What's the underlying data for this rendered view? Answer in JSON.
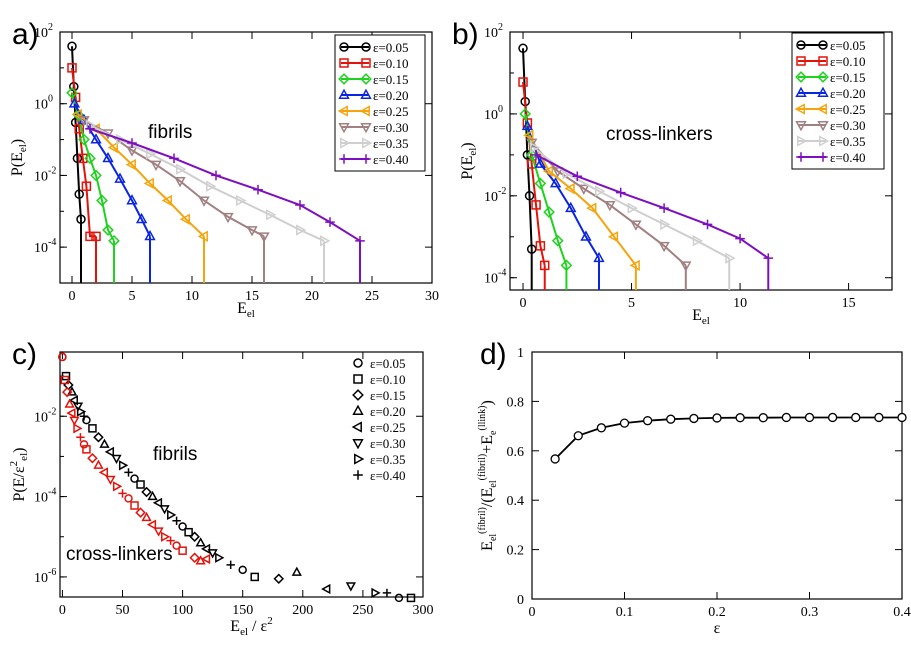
{
  "figure": {
    "panel_labels": [
      "a)",
      "b)",
      "c)",
      "d)"
    ]
  },
  "chart_data": [
    {
      "panel": "a)",
      "type": "line",
      "xlabel": "E",
      "xlabel_sub": "el",
      "ylabel": "P(E",
      "ylabel_sub": "el",
      "ylabel_close": ")",
      "xlim": [
        -1,
        30
      ],
      "ylim_log10": [
        -5,
        2
      ],
      "y_scale": "log",
      "xticks": [
        0,
        5,
        10,
        15,
        20,
        25,
        30
      ],
      "yticks": [
        {
          "exp": 2,
          "label": "10"
        },
        {
          "exp": 0,
          "label": "10"
        },
        {
          "exp": -2,
          "label": "10"
        },
        {
          "exp": -4,
          "label": "10"
        }
      ],
      "ytick_exponents": [
        "2",
        "0",
        "-2",
        "-4"
      ],
      "annotation": {
        "text": "fibrils",
        "color": "#000000"
      },
      "legend_position": "top-right",
      "series": [
        {
          "name": "ε=0.05",
          "color": "#000000",
          "marker": "circle",
          "x": [
            0,
            0.15,
            0.3,
            0.45,
            0.6,
            0.75
          ],
          "y": [
            40,
            3,
            0.3,
            0.03,
            0.003,
            0.0006
          ]
        },
        {
          "name": "ε=0.10",
          "color": "#e3120b",
          "marker": "square",
          "x": [
            0,
            0.3,
            0.6,
            0.9,
            1.2,
            1.5,
            2.0
          ],
          "y": [
            10,
            1.5,
            0.2,
            0.03,
            0.005,
            0.0002,
            0.0002
          ]
        },
        {
          "name": "ε=0.15",
          "color": "#1fd21f",
          "marker": "diamond",
          "x": [
            0,
            0.5,
            1.0,
            1.5,
            2.0,
            2.5,
            3.0,
            3.5
          ],
          "y": [
            2,
            0.5,
            0.1,
            0.03,
            0.01,
            0.002,
            0.0003,
            0.00015
          ]
        },
        {
          "name": "ε=0.20",
          "color": "#0a25e0",
          "marker": "triangle-up",
          "x": [
            0.2,
            1,
            2,
            3,
            4,
            5,
            5.8,
            6.5
          ],
          "y": [
            1,
            0.35,
            0.1,
            0.03,
            0.008,
            0.002,
            0.0006,
            0.0002
          ]
        },
        {
          "name": "ε=0.25",
          "color": "#f5a40c",
          "marker": "triangle-left",
          "x": [
            0.5,
            2,
            3.5,
            5,
            6.5,
            8,
            9.5,
            11
          ],
          "y": [
            0.5,
            0.2,
            0.06,
            0.02,
            0.006,
            0.002,
            0.0006,
            0.0002
          ]
        },
        {
          "name": "ε=0.30",
          "color": "#a08080",
          "marker": "triangle-down",
          "x": [
            1,
            3,
            5,
            7,
            9,
            11,
            13,
            15,
            16
          ],
          "y": [
            0.35,
            0.15,
            0.05,
            0.02,
            0.007,
            0.002,
            0.0007,
            0.0003,
            0.0002
          ]
        },
        {
          "name": "ε=0.35",
          "color": "#cfcfcf",
          "marker": "triangle-right",
          "x": [
            1.5,
            4,
            6.5,
            9,
            11.5,
            14,
            16.5,
            19,
            21
          ],
          "y": [
            0.25,
            0.1,
            0.04,
            0.015,
            0.005,
            0.002,
            0.0008,
            0.0003,
            0.00015
          ]
        },
        {
          "name": "ε=0.40",
          "color": "#7d0fbe",
          "marker": "plus",
          "x": [
            1.5,
            5,
            8.5,
            12,
            15.5,
            19,
            21.5,
            24
          ],
          "y": [
            0.2,
            0.08,
            0.03,
            0.01,
            0.004,
            0.0015,
            0.0005,
            0.00015
          ]
        }
      ]
    },
    {
      "panel": "b)",
      "type": "line",
      "xlabel": "E",
      "xlabel_sub": "el",
      "ylabel": "P(E",
      "ylabel_sub": "el",
      "ylabel_close": ")",
      "xlim": [
        -0.6,
        17
      ],
      "ylim_log10": [
        -4.3,
        2
      ],
      "y_scale": "log",
      "xticks": [
        0,
        5,
        10,
        15
      ],
      "yticks": [
        {
          "exp": 2,
          "label": "10"
        },
        {
          "exp": 0,
          "label": "10"
        },
        {
          "exp": -2,
          "label": "10"
        },
        {
          "exp": -4,
          "label": "10"
        }
      ],
      "ytick_exponents": [
        "2",
        "0",
        "-2",
        "-4"
      ],
      "annotation": {
        "text": "cross-linkers",
        "color": "#c0392b"
      },
      "legend_position": "top-right",
      "series": [
        {
          "name": "ε=0.05",
          "color": "#000000",
          "marker": "circle",
          "x": [
            0,
            0.1,
            0.2,
            0.3,
            0.4
          ],
          "y": [
            40,
            2,
            0.1,
            0.01,
            0.0005
          ]
        },
        {
          "name": "ε=0.10",
          "color": "#e3120b",
          "marker": "square",
          "x": [
            0,
            0.2,
            0.4,
            0.6,
            0.8,
            1.0
          ],
          "y": [
            6,
            0.6,
            0.06,
            0.006,
            0.0006,
            0.0002
          ]
        },
        {
          "name": "ε=0.15",
          "color": "#1fd21f",
          "marker": "diamond",
          "x": [
            0.1,
            0.4,
            0.8,
            1.2,
            1.6,
            2.0
          ],
          "y": [
            1,
            0.1,
            0.02,
            0.004,
            0.0008,
            0.0002
          ]
        },
        {
          "name": "ε=0.20",
          "color": "#0a25e0",
          "marker": "triangle-up",
          "x": [
            0.2,
            0.8,
            1.5,
            2.2,
            2.9,
            3.5
          ],
          "y": [
            0.5,
            0.06,
            0.02,
            0.005,
            0.001,
            0.0003
          ]
        },
        {
          "name": "ε=0.25",
          "color": "#f5a40c",
          "marker": "triangle-left",
          "x": [
            0.3,
            1.2,
            2.2,
            3.2,
            4.2,
            5.2
          ],
          "y": [
            0.3,
            0.04,
            0.015,
            0.005,
            0.001,
            0.0002
          ]
        },
        {
          "name": "ε=0.30",
          "color": "#a08080",
          "marker": "triangle-down",
          "x": [
            0.4,
            1.6,
            2.8,
            4.0,
            5.2,
            6.5,
            7.5
          ],
          "y": [
            0.2,
            0.04,
            0.015,
            0.006,
            0.002,
            0.0006,
            0.0002
          ]
        },
        {
          "name": "ε=0.35",
          "color": "#cfcfcf",
          "marker": "triangle-right",
          "x": [
            0.5,
            2,
            3.5,
            5,
            6.5,
            8,
            9.5
          ],
          "y": [
            0.15,
            0.035,
            0.013,
            0.005,
            0.002,
            0.0008,
            0.0003
          ]
        },
        {
          "name": "ε=0.40",
          "color": "#7d0fbe",
          "marker": "plus",
          "x": [
            0.6,
            2.5,
            4.5,
            6.5,
            8.5,
            10,
            11.3
          ],
          "y": [
            0.1,
            0.03,
            0.012,
            0.005,
            0.002,
            0.0009,
            0.0003
          ]
        }
      ]
    },
    {
      "panel": "c)",
      "type": "scatter",
      "xlabel": "E",
      "xlabel_sub": "el",
      "xlabel_rest": " / ε",
      "xlabel_sup": "2",
      "ylabel": "P(E/ε",
      "ylabel_sup": "2",
      "ylabel_sub": "el",
      "ylabel_close": ")",
      "xlim": [
        -2,
        300
      ],
      "ylim_log10": [
        -6.5,
        -0.4
      ],
      "y_scale": "log",
      "xticks": [
        0,
        50,
        100,
        150,
        200,
        250,
        300
      ],
      "yticks": [
        {
          "exp": -2,
          "label": "10"
        },
        {
          "exp": -4,
          "label": "10"
        },
        {
          "exp": -6,
          "label": "10"
        }
      ],
      "ytick_exponents": [
        "-2",
        "-4",
        "-6"
      ],
      "annotations": [
        {
          "text": "fibrils",
          "color": "#000000"
        },
        {
          "text": "cross-linkers",
          "color": "#e3120b"
        }
      ],
      "legend_position": "top-right",
      "legend": [
        {
          "name": "ε=0.05",
          "marker": "circle"
        },
        {
          "name": "ε=0.10",
          "marker": "square"
        },
        {
          "name": "ε=0.15",
          "marker": "diamond"
        },
        {
          "name": "ε=0.20",
          "marker": "triangle-up"
        },
        {
          "name": "ε=0.25",
          "marker": "triangle-left"
        },
        {
          "name": "ε=0.30",
          "marker": "triangle-down"
        },
        {
          "name": "ε=0.35",
          "marker": "triangle-right"
        },
        {
          "name": "ε=0.40",
          "marker": "plus"
        }
      ],
      "series": [
        {
          "name": "fibrils",
          "color": "#000000",
          "x": [
            0,
            3,
            5,
            8,
            10,
            13,
            15,
            18,
            20,
            25,
            30,
            35,
            40,
            45,
            50,
            55,
            60,
            65,
            70,
            75,
            80,
            85,
            90,
            95,
            100,
            105,
            110,
            115,
            120,
            125,
            130,
            140,
            150,
            160,
            180,
            195,
            220,
            240,
            260,
            270,
            280,
            290
          ],
          "y": [
            0.3,
            0.1,
            0.06,
            0.04,
            0.025,
            0.018,
            0.013,
            0.01,
            0.008,
            0.005,
            0.003,
            0.002,
            0.0013,
            0.0009,
            0.0006,
            0.0004,
            0.00028,
            0.0002,
            0.00013,
            0.0001,
            7e-05,
            5e-05,
            3.5e-05,
            2.5e-05,
            1.8e-05,
            1.3e-05,
            1e-05,
            7e-06,
            5e-06,
            4e-06,
            3e-06,
            2e-06,
            1.5e-06,
            1e-06,
            9e-07,
            1.3e-06,
            5e-07,
            6e-07,
            4e-07,
            4e-07,
            3e-07,
            3e-07
          ]
        },
        {
          "name": "cross-linkers",
          "color": "#e3120b",
          "x": [
            0,
            2,
            4,
            6,
            8,
            10,
            12,
            15,
            18,
            20,
            25,
            30,
            35,
            40,
            45,
            50,
            55,
            60,
            65,
            70,
            75,
            80,
            85,
            90,
            95,
            100,
            110,
            115,
            120
          ],
          "y": [
            0.3,
            0.08,
            0.04,
            0.02,
            0.012,
            0.008,
            0.005,
            0.003,
            0.002,
            0.0015,
            0.0009,
            0.0006,
            0.0004,
            0.00027,
            0.00018,
            0.00012,
            9e-05,
            6e-05,
            4e-05,
            3e-05,
            2e-05,
            1.4e-05,
            1e-05,
            8e-06,
            6e-06,
            4.5e-06,
            3e-06,
            2.5e-06,
            2.8e-06
          ]
        }
      ]
    },
    {
      "panel": "d)",
      "type": "line",
      "xlabel": "ε",
      "ylabel_parts": [
        "E",
        "el",
        "(fibril)",
        "/(E",
        "el",
        "(fibril)",
        "+E",
        "e",
        "(llink)",
        ")"
      ],
      "xlim": [
        0,
        0.4
      ],
      "ylim": [
        0,
        1
      ],
      "xticks": [
        0,
        0.1,
        0.2,
        0.3,
        0.4
      ],
      "yticks": [
        0,
        0.2,
        0.4,
        0.6,
        0.8,
        1
      ],
      "series": [
        {
          "name": "",
          "color": "#000000",
          "marker": "circle",
          "x": [
            0.025,
            0.05,
            0.075,
            0.1,
            0.125,
            0.15,
            0.175,
            0.2,
            0.225,
            0.25,
            0.275,
            0.3,
            0.325,
            0.35,
            0.375,
            0.4
          ],
          "y": [
            0.567,
            0.661,
            0.693,
            0.712,
            0.722,
            0.728,
            0.731,
            0.733,
            0.734,
            0.734,
            0.735,
            0.735,
            0.735,
            0.735,
            0.735,
            0.735
          ]
        }
      ]
    }
  ]
}
